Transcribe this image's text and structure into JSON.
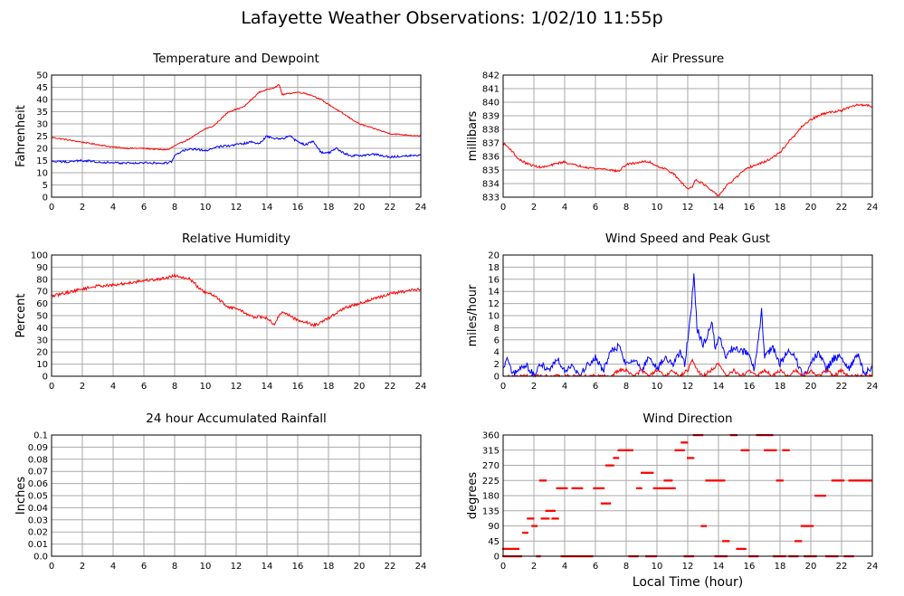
{
  "page": {
    "title": "Lafayette Weather Observations: 1/02/10 11:55p",
    "x_axis_label": "Local Time (hour)"
  },
  "colors": {
    "red": "#ff0000",
    "blue": "#0000ff",
    "grid": "#aaaaaa",
    "axis": "#000000"
  },
  "chart_data": [
    {
      "id": "temp",
      "type": "line",
      "title": "Temperature and Dewpoint",
      "ylabel": "Fahrenheit",
      "xlim": [
        0,
        24
      ],
      "ylim": [
        0,
        50
      ],
      "xticks": [
        0,
        2,
        4,
        6,
        8,
        10,
        12,
        14,
        16,
        18,
        20,
        22,
        24
      ],
      "yticks": [
        0,
        5,
        10,
        15,
        20,
        25,
        30,
        35,
        40,
        45,
        50
      ],
      "grid": true,
      "series": [
        {
          "color": "#ff0000",
          "jitter": 0.25,
          "x": [
            0,
            1,
            2,
            3,
            4,
            5,
            6,
            7,
            7.6,
            8,
            8.5,
            9,
            9.5,
            10,
            10.5,
            11,
            11.5,
            12,
            12.5,
            13,
            13.5,
            14,
            14.5,
            14.8,
            15,
            15.5,
            16,
            16.5,
            17,
            17.5,
            18,
            18.5,
            19,
            19.5,
            20,
            20.5,
            21,
            21.5,
            22,
            23,
            24
          ],
          "y": [
            24.5,
            23.5,
            22.5,
            21.5,
            20.5,
            20,
            20,
            19.5,
            19.5,
            21,
            22.5,
            24,
            26,
            28,
            29,
            32,
            35,
            36,
            37,
            40,
            43,
            44,
            45,
            46,
            42,
            42.5,
            43,
            42.5,
            41.5,
            40,
            38,
            36,
            34,
            32,
            30,
            29,
            28,
            27,
            26,
            25.5,
            25
          ]
        },
        {
          "color": "#0000ff",
          "jitter": 0.45,
          "x": [
            0,
            1,
            2,
            3,
            4,
            5,
            6,
            7,
            7.5,
            7.8,
            8,
            8.5,
            9,
            9.5,
            10,
            10.5,
            11,
            11.5,
            12,
            12.5,
            13,
            13.5,
            14,
            14.5,
            15,
            15.5,
            16,
            16.5,
            17,
            17.5,
            18,
            18.5,
            19,
            19.5,
            20,
            21,
            22,
            23,
            24
          ],
          "y": [
            14.5,
            14.5,
            15,
            14.5,
            14,
            14,
            14,
            14,
            14,
            14.5,
            17,
            19,
            19.5,
            19.5,
            19,
            20,
            21,
            21,
            21.5,
            22,
            22.5,
            22,
            25,
            24,
            24,
            25,
            22.5,
            21.5,
            23,
            18.5,
            18,
            20,
            18,
            17,
            17,
            17.5,
            16.5,
            17,
            17
          ]
        }
      ]
    },
    {
      "id": "pressure",
      "type": "line",
      "title": "Air Pressure",
      "ylabel": "millibars",
      "xlim": [
        0,
        24
      ],
      "ylim": [
        833,
        842
      ],
      "xticks": [
        0,
        2,
        4,
        6,
        8,
        10,
        12,
        14,
        16,
        18,
        20,
        22,
        24
      ],
      "yticks": [
        833,
        834,
        835,
        836,
        837,
        838,
        839,
        840,
        841,
        842
      ],
      "grid": true,
      "series": [
        {
          "color": "#ff0000",
          "jitter": 0.08,
          "x": [
            0,
            0.5,
            1,
            1.5,
            2,
            2.5,
            3,
            3.5,
            4,
            4.5,
            5,
            5.5,
            6,
            6.5,
            7,
            7.5,
            8,
            8.5,
            9,
            9.5,
            10,
            10.5,
            11,
            11.5,
            12,
            12.3,
            12.5,
            13,
            13.5,
            14,
            14.5,
            15,
            15.5,
            16,
            16.5,
            17,
            17.5,
            18,
            18.5,
            19,
            19.5,
            20,
            20.5,
            21,
            21.5,
            22,
            22.5,
            23,
            23.5,
            24
          ],
          "y": [
            837,
            836.5,
            835.8,
            835.5,
            835.3,
            835.2,
            835.3,
            835.5,
            835.6,
            835.4,
            835.3,
            835.2,
            835.1,
            835.1,
            835,
            834.9,
            835.4,
            835.5,
            835.6,
            835.6,
            835.3,
            835.1,
            834.8,
            834.2,
            833.6,
            833.8,
            834.3,
            834,
            833.5,
            833.1,
            833.8,
            834.3,
            834.8,
            835.2,
            835.4,
            835.6,
            835.9,
            836.3,
            837,
            837.6,
            838.3,
            838.7,
            839,
            839.2,
            839.3,
            839.4,
            839.6,
            839.8,
            839.8,
            839.7
          ]
        }
      ]
    },
    {
      "id": "humidity",
      "type": "line",
      "title": "Relative Humidity",
      "ylabel": "Percent",
      "xlim": [
        0,
        24
      ],
      "ylim": [
        0,
        100
      ],
      "xticks": [
        0,
        2,
        4,
        6,
        8,
        10,
        12,
        14,
        16,
        18,
        20,
        22,
        24
      ],
      "yticks": [
        0,
        10,
        20,
        30,
        40,
        50,
        60,
        70,
        80,
        90,
        100
      ],
      "grid": true,
      "series": [
        {
          "color": "#ff0000",
          "jitter": 1.2,
          "x": [
            0,
            1,
            2,
            3,
            4,
            5,
            6,
            7,
            7.5,
            8,
            8.5,
            9,
            9.3,
            9.6,
            10,
            10.5,
            11,
            11.5,
            12,
            12.5,
            13,
            13.5,
            14,
            14.5,
            14.8,
            15,
            15.5,
            16,
            16.5,
            17,
            17.5,
            18,
            18.5,
            19,
            19.5,
            20,
            20.5,
            21,
            21.5,
            22,
            23,
            24
          ],
          "y": [
            66,
            69,
            72,
            74.5,
            75,
            77,
            79,
            80,
            81.5,
            83,
            82,
            80,
            77,
            72,
            69,
            67,
            62,
            57,
            56,
            53,
            49,
            49,
            48,
            42,
            51,
            53,
            50,
            46,
            45,
            42,
            44,
            48,
            52,
            56,
            58,
            60,
            62,
            64,
            66,
            68,
            70,
            72
          ]
        }
      ]
    },
    {
      "id": "wind",
      "type": "line",
      "title": "Wind Speed and Peak Gust",
      "ylabel": "miles/hour",
      "xlim": [
        0,
        24
      ],
      "ylim": [
        0,
        20
      ],
      "xticks": [
        0,
        2,
        4,
        6,
        8,
        10,
        12,
        14,
        16,
        18,
        20,
        22,
        24
      ],
      "yticks": [
        0,
        2,
        4,
        6,
        8,
        10,
        12,
        14,
        16,
        18,
        20
      ],
      "grid": true,
      "series": [
        {
          "color": "#0000ff",
          "jitter": 0.6,
          "x": [
            0,
            0.3,
            0.6,
            1,
            1.5,
            2,
            2.5,
            3,
            3.5,
            4,
            4.5,
            5,
            5.5,
            6,
            6.5,
            7,
            7.5,
            8,
            8.5,
            9,
            9.5,
            10,
            10.5,
            11,
            11.5,
            11.8,
            12,
            12.2,
            12.4,
            12.6,
            13,
            13.3,
            13.6,
            13.8,
            14,
            14.5,
            15,
            15.5,
            16,
            16.3,
            16.6,
            16.8,
            17,
            17.5,
            18,
            18.5,
            19,
            19.5,
            20,
            20.5,
            21,
            21.5,
            22,
            22.5,
            23,
            23.5,
            24
          ],
          "y": [
            1,
            3,
            0,
            1,
            2,
            0,
            2,
            1,
            3,
            1,
            2,
            0,
            2,
            3,
            1,
            4,
            5,
            2,
            3,
            1,
            3,
            1,
            3,
            2,
            4,
            2,
            6,
            10,
            17,
            8,
            5,
            7,
            9,
            4,
            7,
            3,
            5,
            4,
            4,
            1,
            6,
            11,
            3,
            5,
            2,
            4,
            3,
            0,
            2,
            4,
            1,
            3,
            3,
            1,
            4,
            0,
            2
          ]
        },
        {
          "color": "#ff0000",
          "jitter": 0.3,
          "x": [
            0,
            6,
            7,
            7.5,
            8,
            8.5,
            9,
            9.5,
            10,
            10.5,
            11,
            11.5,
            12,
            12.3,
            12.6,
            13,
            13.5,
            14,
            14.5,
            15,
            15.5,
            16,
            16.5,
            17,
            17.5,
            18,
            18.5,
            19,
            19.5,
            20,
            20.5,
            21,
            21.5,
            22,
            22.5,
            23,
            24
          ],
          "y": [
            0,
            0,
            0,
            1,
            1,
            0,
            1,
            0,
            1,
            0,
            1,
            0,
            1,
            3,
            1,
            0,
            1,
            2,
            0,
            1,
            0,
            1,
            0,
            1,
            0,
            1,
            0,
            1,
            0,
            1,
            0,
            1,
            0,
            1,
            0,
            0,
            0
          ]
        }
      ]
    },
    {
      "id": "rain",
      "type": "line",
      "title": "24 hour Accumulated Rainfall",
      "ylabel": "Inches",
      "xlim": [
        0,
        24
      ],
      "ylim": [
        0,
        0.1
      ],
      "xticks": [
        0,
        2,
        4,
        6,
        8,
        10,
        12,
        14,
        16,
        18,
        20,
        22,
        24
      ],
      "yticks": [
        0,
        0.01,
        0.02,
        0.03,
        0.04,
        0.05,
        0.06,
        0.07,
        0.08,
        0.09,
        0.1
      ],
      "ytick_labels": [
        "0.0",
        "0.01",
        "0.02",
        "0.03",
        "0.04",
        "0.05",
        "0.06",
        "0.07",
        "0.08",
        "0.09",
        "0.1"
      ],
      "grid": true,
      "series": [
        {
          "color": "#ff0000",
          "jitter": 0,
          "x": [
            0,
            24
          ],
          "y": [
            0,
            0
          ]
        }
      ]
    },
    {
      "id": "direction",
      "type": "scatter",
      "title": "Wind Direction",
      "ylabel": "degrees",
      "xlim": [
        0,
        24
      ],
      "ylim": [
        0,
        360
      ],
      "xticks": [
        0,
        2,
        4,
        6,
        8,
        10,
        12,
        14,
        16,
        18,
        20,
        22,
        24
      ],
      "yticks": [
        0,
        45,
        90,
        135,
        180,
        225,
        270,
        315,
        360
      ],
      "grid": true,
      "series": [
        {
          "color": "#ff0000",
          "segments": [
            [
              0,
              1,
              22
            ],
            [
              0,
              1.2,
              0
            ],
            [
              1.3,
              1.6,
              70
            ],
            [
              1.6,
              2.0,
              112
            ],
            [
              1.9,
              2.2,
              90
            ],
            [
              2.2,
              2.4,
              0
            ],
            [
              2.4,
              2.8,
              225
            ],
            [
              2.5,
              3.0,
              112
            ],
            [
              2.8,
              3.4,
              135
            ],
            [
              3.2,
              3.6,
              112
            ],
            [
              3.5,
              4.2,
              202
            ],
            [
              3.8,
              5.8,
              0
            ],
            [
              4.5,
              5.2,
              202
            ],
            [
              5.9,
              6.6,
              202
            ],
            [
              6.4,
              7.0,
              157
            ],
            [
              6.7,
              7.2,
              270
            ],
            [
              7.2,
              7.5,
              292
            ],
            [
              7.5,
              8.4,
              315
            ],
            [
              8.2,
              8.8,
              0
            ],
            [
              8.7,
              9.0,
              202
            ],
            [
              9.0,
              9.8,
              248
            ],
            [
              9.3,
              10.0,
              0
            ],
            [
              9.8,
              11.2,
              202
            ],
            [
              10.5,
              11.0,
              225
            ],
            [
              11.2,
              11.8,
              315
            ],
            [
              11.6,
              12.0,
              338
            ],
            [
              11.8,
              12.4,
              0
            ],
            [
              12.0,
              12.4,
              292
            ],
            [
              12.4,
              13.0,
              360
            ],
            [
              12.9,
              13.2,
              90
            ],
            [
              13.2,
              14.4,
              225
            ],
            [
              13.8,
              14.6,
              0
            ],
            [
              14.3,
              14.7,
              45
            ],
            [
              14.8,
              15.2,
              360
            ],
            [
              15.2,
              15.8,
              22
            ],
            [
              15.5,
              16.0,
              315
            ],
            [
              16.0,
              16.6,
              0
            ],
            [
              16.5,
              17.5,
              360
            ],
            [
              17.0,
              17.8,
              315
            ],
            [
              17.6,
              18.4,
              0
            ],
            [
              17.8,
              18.2,
              225
            ],
            [
              18.2,
              18.6,
              315
            ],
            [
              18.6,
              19.2,
              0
            ],
            [
              19.0,
              19.4,
              45
            ],
            [
              19.4,
              20.2,
              90
            ],
            [
              19.6,
              20.4,
              0
            ],
            [
              20.3,
              21.0,
              180
            ],
            [
              21.0,
              21.8,
              0
            ],
            [
              21.4,
              22.2,
              225
            ],
            [
              22.2,
              22.8,
              0
            ],
            [
              22.5,
              24,
              225
            ]
          ]
        }
      ]
    }
  ]
}
